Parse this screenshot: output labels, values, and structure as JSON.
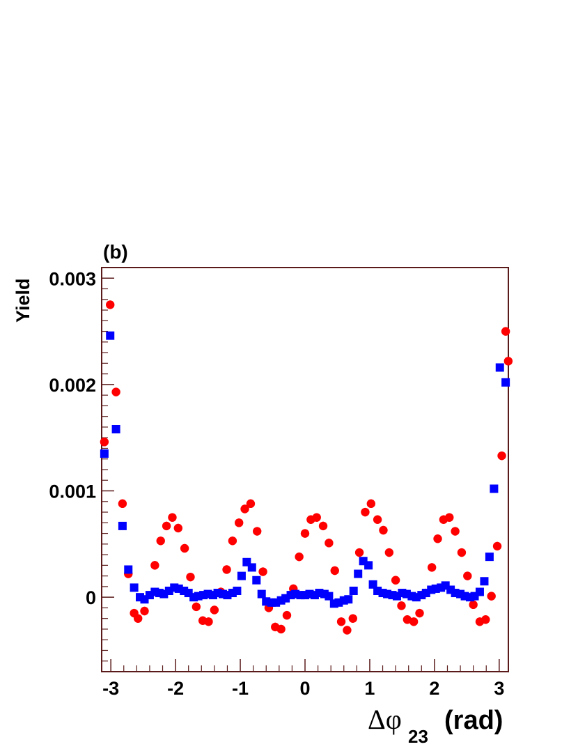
{
  "chart_data": {
    "type": "scatter",
    "panel_label": "(b)",
    "ylabel": "Yield",
    "xlabel": {
      "symbol": "Δφ",
      "subscript": "23",
      "unit": "(rad)"
    },
    "xlim": [
      -3.1416,
      3.1416
    ],
    "ylim": [
      -0.0007,
      0.0031
    ],
    "xticks": [
      {
        "value": -3,
        "label": "-3"
      },
      {
        "value": -2,
        "label": "-2"
      },
      {
        "value": -1,
        "label": "-1"
      },
      {
        "value": 0,
        "label": "0"
      },
      {
        "value": 1,
        "label": "1"
      },
      {
        "value": 2,
        "label": "2"
      },
      {
        "value": 3,
        "label": "3"
      }
    ],
    "yticks": [
      {
        "value": 0,
        "label": "0"
      },
      {
        "value": 0.001,
        "label": "0.001"
      },
      {
        "value": 0.002,
        "label": "0.002"
      },
      {
        "value": 0.003,
        "label": "0.003"
      }
    ],
    "grid": false,
    "series": [
      {
        "marker": "circle",
        "color": "#ff0000",
        "points": [
          {
            "x": -3.1,
            "y": 0.00146,
            "err": 4e-05
          },
          {
            "x": -3.01,
            "y": 0.00275,
            "err": 4e-05
          },
          {
            "x": -2.92,
            "y": 0.00193,
            "err": 4e-05
          },
          {
            "x": -2.82,
            "y": 0.00088,
            "err": 4e-05
          },
          {
            "x": -2.73,
            "y": 0.00022,
            "err": 4e-05
          },
          {
            "x": -2.64,
            "y": -0.00015,
            "err": 4e-05
          },
          {
            "x": -2.58,
            "y": -0.0002,
            "err": 4e-05
          },
          {
            "x": -2.48,
            "y": -0.00013,
            "err": 4e-05
          },
          {
            "x": -2.32,
            "y": 0.0003,
            "err": 4e-05
          },
          {
            "x": -2.23,
            "y": 0.00053,
            "err": 4e-05
          },
          {
            "x": -2.14,
            "y": 0.00067,
            "err": 4e-05
          },
          {
            "x": -2.05,
            "y": 0.00075,
            "err": 4e-05
          },
          {
            "x": -1.96,
            "y": 0.00065,
            "err": 4e-05
          },
          {
            "x": -1.86,
            "y": 0.00046,
            "err": 4e-05
          },
          {
            "x": -1.77,
            "y": 0.00019,
            "err": 4e-05
          },
          {
            "x": -1.68,
            "y": -9e-05,
            "err": 4e-05
          },
          {
            "x": -1.58,
            "y": -0.00022,
            "err": 4e-05
          },
          {
            "x": -1.49,
            "y": -0.00023,
            "err": 4e-05
          },
          {
            "x": -1.4,
            "y": -0.00012,
            "err": 4e-05
          },
          {
            "x": -1.3,
            "y": 5e-05,
            "err": 4e-05
          },
          {
            "x": -1.21,
            "y": 0.00026,
            "err": 4e-05
          },
          {
            "x": -1.12,
            "y": 0.00053,
            "err": 4e-05
          },
          {
            "x": -1.02,
            "y": 0.0007,
            "err": 4e-05
          },
          {
            "x": -0.93,
            "y": 0.00083,
            "err": 4e-05
          },
          {
            "x": -0.84,
            "y": 0.00088,
            "err": 4e-05
          },
          {
            "x": -0.74,
            "y": 0.00062,
            "err": 4e-05
          },
          {
            "x": -0.65,
            "y": 0.00024,
            "err": 4e-05
          },
          {
            "x": -0.56,
            "y": -0.0001,
            "err": 4e-05
          },
          {
            "x": -0.46,
            "y": -0.00028,
            "err": 4e-05
          },
          {
            "x": -0.37,
            "y": -0.0003,
            "err": 4e-05
          },
          {
            "x": -0.28,
            "y": -0.00017,
            "err": 4e-05
          },
          {
            "x": -0.18,
            "y": 8e-05,
            "err": 4e-05
          },
          {
            "x": -0.09,
            "y": 0.00038,
            "err": 4e-05
          },
          {
            "x": 0.0,
            "y": 0.0006,
            "err": 4e-05
          },
          {
            "x": 0.09,
            "y": 0.00073,
            "err": 4e-05
          },
          {
            "x": 0.18,
            "y": 0.00075,
            "err": 4e-05
          },
          {
            "x": 0.28,
            "y": 0.00067,
            "err": 4e-05
          },
          {
            "x": 0.37,
            "y": 0.00051,
            "err": 4e-05
          },
          {
            "x": 0.46,
            "y": 0.00025,
            "err": 4e-05
          },
          {
            "x": 0.56,
            "y": -0.00023,
            "err": 4e-05
          },
          {
            "x": 0.65,
            "y": -0.00031,
            "err": 4e-05
          },
          {
            "x": 0.74,
            "y": -0.0002,
            "err": 4e-05
          },
          {
            "x": 0.84,
            "y": 0.00042,
            "err": 4e-05
          },
          {
            "x": 0.93,
            "y": 0.0008,
            "err": 4e-05
          },
          {
            "x": 1.02,
            "y": 0.00088,
            "err": 4e-05
          },
          {
            "x": 1.12,
            "y": 0.00073,
            "err": 4e-05
          },
          {
            "x": 1.21,
            "y": 0.00063,
            "err": 4e-05
          },
          {
            "x": 1.3,
            "y": 0.00042,
            "err": 4e-05
          },
          {
            "x": 1.4,
            "y": 0.00016,
            "err": 4e-05
          },
          {
            "x": 1.49,
            "y": -8e-05,
            "err": 4e-05
          },
          {
            "x": 1.58,
            "y": -0.00021,
            "err": 4e-05
          },
          {
            "x": 1.68,
            "y": -0.00023,
            "err": 4e-05
          },
          {
            "x": 1.77,
            "y": -0.00015,
            "err": 4e-05
          },
          {
            "x": 1.86,
            "y": 4e-05,
            "err": 4e-05
          },
          {
            "x": 1.96,
            "y": 0.00028,
            "err": 4e-05
          },
          {
            "x": 2.05,
            "y": 0.00055,
            "err": 4e-05
          },
          {
            "x": 2.14,
            "y": 0.00073,
            "err": 4e-05
          },
          {
            "x": 2.23,
            "y": 0.00075,
            "err": 4e-05
          },
          {
            "x": 2.32,
            "y": 0.00062,
            "err": 4e-05
          },
          {
            "x": 2.42,
            "y": 0.00042,
            "err": 4e-05
          },
          {
            "x": 2.51,
            "y": 0.0002,
            "err": 4e-05
          },
          {
            "x": 2.6,
            "y": -7e-05,
            "err": 4e-05
          },
          {
            "x": 2.7,
            "y": -0.00023,
            "err": 4e-05
          },
          {
            "x": 2.79,
            "y": -0.00021,
            "err": 4e-05
          },
          {
            "x": 2.88,
            "y": 1e-05,
            "err": 4e-05
          },
          {
            "x": 2.97,
            "y": 0.00048,
            "err": 4e-05
          },
          {
            "x": 3.04,
            "y": 0.00133,
            "err": 4e-05
          },
          {
            "x": 3.1,
            "y": 0.0025,
            "err": 4e-05
          },
          {
            "x": 3.14,
            "y": 0.00222,
            "err": 4e-05
          }
        ]
      },
      {
        "marker": "square",
        "color": "#0000ff",
        "points": [
          {
            "x": -3.1,
            "y": 0.00135,
            "err": 3e-05
          },
          {
            "x": -3.01,
            "y": 0.00246,
            "err": 3e-05
          },
          {
            "x": -2.92,
            "y": 0.00158,
            "err": 3e-05
          },
          {
            "x": -2.82,
            "y": 0.00067,
            "err": 3e-05
          },
          {
            "x": -2.73,
            "y": 0.00026,
            "err": 3e-05
          },
          {
            "x": -2.64,
            "y": 9e-05,
            "err": 3e-05
          },
          {
            "x": -2.55,
            "y": 0.0,
            "err": 3e-05
          },
          {
            "x": -2.48,
            "y": -2e-05,
            "err": 3e-05
          },
          {
            "x": -2.4,
            "y": 2e-05,
            "err": 3e-05
          },
          {
            "x": -2.32,
            "y": 5e-05,
            "err": 3e-05
          },
          {
            "x": -2.25,
            "y": 4e-05,
            "err": 3e-05
          },
          {
            "x": -2.18,
            "y": 3e-05,
            "err": 3e-05
          },
          {
            "x": -2.1,
            "y": 6e-05,
            "err": 3e-05
          },
          {
            "x": -2.02,
            "y": 9e-05,
            "err": 3e-05
          },
          {
            "x": -1.95,
            "y": 8e-05,
            "err": 3e-05
          },
          {
            "x": -1.87,
            "y": 6e-05,
            "err": 3e-05
          },
          {
            "x": -1.8,
            "y": 4e-05,
            "err": 3e-05
          },
          {
            "x": -1.72,
            "y": 0.0,
            "err": 3e-05
          },
          {
            "x": -1.65,
            "y": 1e-05,
            "err": 3e-05
          },
          {
            "x": -1.57,
            "y": 2e-05,
            "err": 3e-05
          },
          {
            "x": -1.5,
            "y": 3e-05,
            "err": 3e-05
          },
          {
            "x": -1.42,
            "y": 2e-05,
            "err": 3e-05
          },
          {
            "x": -1.35,
            "y": 4e-05,
            "err": 3e-05
          },
          {
            "x": -1.27,
            "y": 3e-05,
            "err": 3e-05
          },
          {
            "x": -1.2,
            "y": 2e-05,
            "err": 3e-05
          },
          {
            "x": -1.12,
            "y": 4e-05,
            "err": 3e-05
          },
          {
            "x": -1.05,
            "y": 6e-05,
            "err": 3e-05
          },
          {
            "x": -0.98,
            "y": 0.0002,
            "err": 3e-05
          },
          {
            "x": -0.9,
            "y": 0.00033,
            "err": 3e-05
          },
          {
            "x": -0.82,
            "y": 0.00028,
            "err": 3e-05
          },
          {
            "x": -0.75,
            "y": 0.00016,
            "err": 3e-05
          },
          {
            "x": -0.67,
            "y": 3e-05,
            "err": 3e-05
          },
          {
            "x": -0.6,
            "y": -4e-05,
            "err": 3e-05
          },
          {
            "x": -0.52,
            "y": -5e-05,
            "err": 3e-05
          },
          {
            "x": -0.45,
            "y": -5e-05,
            "err": 3e-05
          },
          {
            "x": -0.37,
            "y": -3e-05,
            "err": 3e-05
          },
          {
            "x": -0.3,
            "y": -1e-05,
            "err": 3e-05
          },
          {
            "x": -0.22,
            "y": 2e-05,
            "err": 3e-05
          },
          {
            "x": -0.15,
            "y": 3e-05,
            "err": 3e-05
          },
          {
            "x": -0.07,
            "y": 2e-05,
            "err": 3e-05
          },
          {
            "x": 0.0,
            "y": 2e-05,
            "err": 3e-05
          },
          {
            "x": 0.07,
            "y": 3e-05,
            "err": 3e-05
          },
          {
            "x": 0.15,
            "y": 2e-05,
            "err": 3e-05
          },
          {
            "x": 0.22,
            "y": 4e-05,
            "err": 3e-05
          },
          {
            "x": 0.3,
            "y": 3e-05,
            "err": 3e-05
          },
          {
            "x": 0.37,
            "y": 1e-05,
            "err": 3e-05
          },
          {
            "x": 0.45,
            "y": -6e-05,
            "err": 3e-05
          },
          {
            "x": 0.52,
            "y": -5e-05,
            "err": 3e-05
          },
          {
            "x": 0.6,
            "y": -3e-05,
            "err": 3e-05
          },
          {
            "x": 0.67,
            "y": -2e-05,
            "err": 3e-05
          },
          {
            "x": 0.75,
            "y": 6e-05,
            "err": 3e-05
          },
          {
            "x": 0.82,
            "y": 0.00022,
            "err": 3e-05
          },
          {
            "x": 0.9,
            "y": 0.00034,
            "err": 3e-05
          },
          {
            "x": 0.98,
            "y": 0.0003,
            "err": 3e-05
          },
          {
            "x": 1.05,
            "y": 0.00012,
            "err": 3e-05
          },
          {
            "x": 1.12,
            "y": 6e-05,
            "err": 3e-05
          },
          {
            "x": 1.2,
            "y": 4e-05,
            "err": 3e-05
          },
          {
            "x": 1.27,
            "y": 3e-05,
            "err": 3e-05
          },
          {
            "x": 1.35,
            "y": 2e-05,
            "err": 3e-05
          },
          {
            "x": 1.42,
            "y": 1e-05,
            "err": 3e-05
          },
          {
            "x": 1.5,
            "y": 4e-05,
            "err": 3e-05
          },
          {
            "x": 1.57,
            "y": 3e-05,
            "err": 3e-05
          },
          {
            "x": 1.65,
            "y": 1e-05,
            "err": 3e-05
          },
          {
            "x": 1.72,
            "y": 0.0,
            "err": 3e-05
          },
          {
            "x": 1.8,
            "y": 2e-05,
            "err": 3e-05
          },
          {
            "x": 1.87,
            "y": 4e-05,
            "err": 3e-05
          },
          {
            "x": 1.95,
            "y": 7e-05,
            "err": 3e-05
          },
          {
            "x": 2.02,
            "y": 8e-05,
            "err": 3e-05
          },
          {
            "x": 2.1,
            "y": 9e-05,
            "err": 3e-05
          },
          {
            "x": 2.17,
            "y": 0.00011,
            "err": 3e-05
          },
          {
            "x": 2.25,
            "y": 7e-05,
            "err": 3e-05
          },
          {
            "x": 2.32,
            "y": 4e-05,
            "err": 3e-05
          },
          {
            "x": 2.4,
            "y": 3e-05,
            "err": 3e-05
          },
          {
            "x": 2.47,
            "y": 1e-05,
            "err": 3e-05
          },
          {
            "x": 2.55,
            "y": 0.0,
            "err": 3e-05
          },
          {
            "x": 2.62,
            "y": 1e-05,
            "err": 3e-05
          },
          {
            "x": 2.7,
            "y": 5e-05,
            "err": 3e-05
          },
          {
            "x": 2.77,
            "y": 0.00015,
            "err": 3e-05
          },
          {
            "x": 2.85,
            "y": 0.00038,
            "err": 3e-05
          },
          {
            "x": 2.92,
            "y": 0.00102,
            "err": 3e-05
          },
          {
            "x": 3.01,
            "y": 0.00216,
            "err": 3e-05
          },
          {
            "x": 3.1,
            "y": 0.00202,
            "err": 3e-05
          }
        ]
      }
    ]
  }
}
